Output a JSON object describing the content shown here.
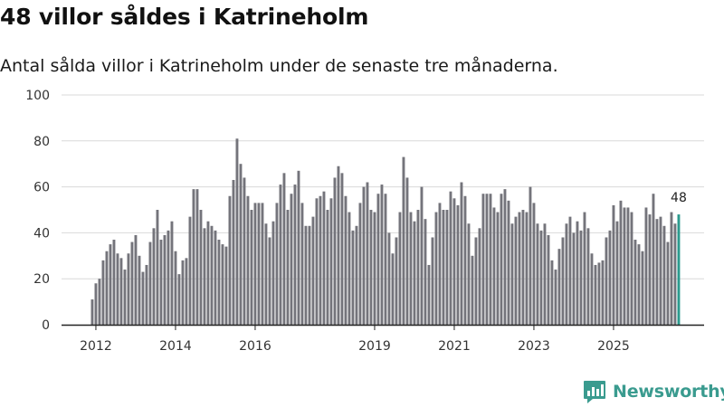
{
  "header": {
    "title": "48 villor såldes i Katrineholm",
    "subtitle": "Antal sålda villor i Katrineholm under de senaste tre månaderna."
  },
  "brand": {
    "name": "Newsworthy",
    "icon": "newsworthy-logo-icon",
    "color": "#3a9b8f"
  },
  "colors": {
    "bar": "#74747b",
    "highlight": "#2b9a8e",
    "grid": "#d9d9d9",
    "axis": "#222222"
  },
  "chart_data": {
    "type": "bar",
    "title": "48 villor såldes i Katrineholm",
    "subtitle": "Antal sålda villor i Katrineholm under de senaste tre månaderna.",
    "xlabel": "",
    "ylabel": "",
    "ylim": [
      0,
      100
    ],
    "yticks": [
      0,
      20,
      40,
      60,
      80,
      100
    ],
    "x_start": "2011-11",
    "x_ticks": [
      {
        "label": "2012",
        "index": 1
      },
      {
        "label": "2014",
        "index": 23
      },
      {
        "label": "2016",
        "index": 45
      },
      {
        "label": "2019",
        "index": 78
      },
      {
        "label": "2021",
        "index": 100
      },
      {
        "label": "2023",
        "index": 122
      },
      {
        "label": "2025",
        "index": 144
      }
    ],
    "values": [
      11,
      18,
      20,
      28,
      32,
      35,
      37,
      31,
      29,
      24,
      31,
      36,
      39,
      30,
      23,
      26,
      36,
      42,
      50,
      37,
      39,
      41,
      45,
      32,
      22,
      28,
      29,
      47,
      59,
      59,
      50,
      42,
      45,
      43,
      41,
      37,
      35,
      34,
      56,
      63,
      81,
      70,
      64,
      56,
      50,
      53,
      53,
      53,
      44,
      38,
      45,
      53,
      61,
      66,
      50,
      57,
      61,
      67,
      53,
      43,
      43,
      47,
      55,
      56,
      58,
      50,
      55,
      64,
      69,
      66,
      56,
      49,
      41,
      43,
      53,
      60,
      62,
      50,
      49,
      57,
      61,
      57,
      40,
      31,
      38,
      49,
      73,
      64,
      49,
      45,
      50,
      60,
      46,
      26,
      38,
      49,
      53,
      50,
      50,
      58,
      55,
      52,
      62,
      56,
      44,
      30,
      38,
      42,
      57,
      57,
      57,
      51,
      49,
      57,
      59,
      54,
      44,
      47,
      49,
      50,
      49,
      60,
      53,
      44,
      41,
      44,
      39,
      28,
      24,
      33,
      38,
      44,
      47,
      40,
      45,
      41,
      49,
      42,
      31,
      26,
      27,
      28,
      38,
      41,
      52,
      45,
      54,
      51,
      51,
      49,
      37,
      35,
      32,
      51,
      48,
      57,
      46,
      47,
      43,
      36,
      49,
      44,
      48
    ],
    "highlight_last": true,
    "data_label": "48"
  }
}
